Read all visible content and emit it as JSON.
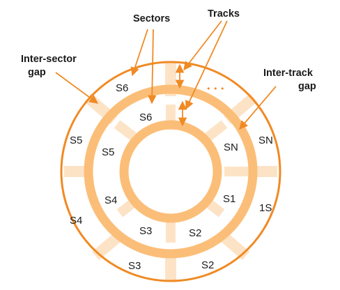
{
  "colors": {
    "outline": "#f08a24",
    "band": "#fbbe78",
    "gap": "#fde3c6",
    "text": "#1a1a1a"
  },
  "callouts": {
    "sectors": "Sectors",
    "tracks": "Tracks",
    "inter_sector_line1": "Inter-sector",
    "inter_sector_line2": "gap",
    "inter_track_line1": "Inter-track",
    "inter_track_line2": "gap",
    "ellipsis": "• • •"
  },
  "outer_track_sectors": [
    "S6",
    "S5",
    "S4",
    "S3",
    "S2",
    "1S",
    "SN"
  ],
  "inner_track_sectors": [
    "S6",
    "S5",
    "S4",
    "S3",
    "S2",
    "S1",
    "SN"
  ]
}
